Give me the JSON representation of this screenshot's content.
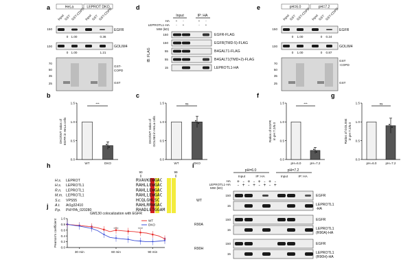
{
  "panel_labels": [
    "a",
    "b",
    "c",
    "d",
    "e",
    "f",
    "g",
    "h",
    "i",
    "j"
  ],
  "panel_a": {
    "groups": [
      "HeLa",
      "LEPROT DKO"
    ],
    "lanes": [
      "Input",
      "GST",
      "GST-COPD",
      "Input",
      "GST",
      "GST-COPD"
    ],
    "mw": [
      "150",
      "100",
      "70",
      "50",
      "35",
      "25"
    ],
    "band_labels": [
      "EGFR",
      "GOLIM4"
    ],
    "egfr_quant": [
      "0",
      "1.00",
      "0.36"
    ],
    "golim4_quant": [
      "0",
      "1.00",
      "1.21"
    ],
    "stain_labels": [
      "GST-\nCOPD",
      "GST"
    ]
  },
  "panel_d": {
    "header": [
      "Input",
      "IP: HA"
    ],
    "rows": [
      "HA",
      "LEPROTL1-HA"
    ],
    "row_signs": [
      "-",
      "+",
      "-",
      "+"
    ],
    "mw_label": "MW (kD)",
    "mw": [
      "150",
      "150",
      "55",
      "55",
      "15"
    ],
    "blot_side": "IB: FLAG",
    "bands": [
      "EGFR-FLAG",
      "EGFR(TMD-5)-FLAG",
      "B4GALT1-FLAG",
      "B4GALT1(TMD+2)-FLAG",
      "LEPROTL1-HA"
    ]
  },
  "panel_e": {
    "groups": [
      "pH=6.0",
      "pH=7.2"
    ],
    "lanes": [
      "Input",
      "GST",
      "GST-COPD",
      "Input",
      "GST",
      "GST-COPD"
    ],
    "mw": [
      "150",
      "100",
      "70",
      "50",
      "35",
      "25"
    ],
    "band_labels": [
      "EGFR",
      "GOLIM4",
      "GST\n-COPD",
      "GST"
    ],
    "egfr_quant": [
      "0",
      "1.00",
      "0",
      "0.24"
    ],
    "golim4_quant": [
      "0",
      "1.00",
      "0",
      "0.87"
    ]
  },
  "panel_h": {
    "positions": [
      "90",
      "99"
    ],
    "species": [
      {
        "org": "H.s.",
        "gene": "LEPROT",
        "seq": "RVAVKEWGAC"
      },
      {
        "org": "H.s.",
        "gene": "LEPROTL1",
        "seq": "RAHLLEWGAC"
      },
      {
        "org": "R.n.",
        "gene": "LEPROTL1",
        "seq": "RAHLLEWGAC"
      },
      {
        "org": "M.m.",
        "gene": "LEPROTL1",
        "seq": "RAHLLEWGAC"
      },
      {
        "org": "S.c.",
        "gene": "VPS55",
        "seq": "HCQLGHLSC"
      },
      {
        "org": "A.t.",
        "gene": "At1g32410",
        "seq": "RAHLRRWGAC"
      },
      {
        "org": "P.p.",
        "gene": "PHYPA_020280",
        "seq": "RHADLETGGAM"
      }
    ]
  },
  "panel_i": {
    "groups": [
      "pH=6.0",
      "pH=7.2"
    ],
    "header": [
      "Input",
      "IP: HA",
      "Input",
      "IP: HA"
    ],
    "rows": [
      "HA",
      "LEPROTL1-HA"
    ],
    "mw_label": "MW (kD)",
    "row_groups": [
      "WT",
      "R90A",
      "R90H"
    ],
    "mw": [
      "150",
      "15",
      "150",
      "15",
      "150",
      "15"
    ],
    "bands": [
      "EGFR",
      "LEPROTL1\n-HA",
      "EGFR",
      "LEPROTL1\n(R90A)-HA",
      "EGFR",
      "LEPROTL1\n(R90H)-HA"
    ]
  },
  "chart_data": [
    {
      "id": "b",
      "type": "bar",
      "categories": [
        "WT",
        "DKO"
      ],
      "values": [
        1.0,
        0.37
      ],
      "errors": [
        0,
        0.1
      ],
      "ylabel": "DKO/WT ratios of\nEGFR in HeLa cells",
      "ylim": [
        0,
        1.5
      ],
      "yticks": [
        "0.0",
        "0.5",
        "1.0",
        "1.5"
      ],
      "sig": "***"
    },
    {
      "id": "c",
      "type": "bar",
      "categories": [
        "WT",
        "DKO"
      ],
      "values": [
        1.0,
        1.0
      ],
      "errors": [
        0,
        0.15
      ],
      "ylabel": "DKO/WT ratios of\nGOLIM4 in HeLa cells",
      "ylim": [
        0,
        1.5
      ],
      "yticks": [
        "0.0",
        "0.5",
        "1.0",
        "1.5"
      ],
      "sig": "ns"
    },
    {
      "id": "f",
      "type": "bar",
      "categories": [
        "pH=6.0",
        "pH=7.2"
      ],
      "values": [
        1.0,
        0.24
      ],
      "errors": [
        0,
        0.08
      ],
      "ylabel": "Ratios of EGFR\nin pH 7.2/6.0",
      "ylim": [
        0,
        1.5
      ],
      "yticks": [
        "0.0",
        "0.5",
        "1.0",
        "1.5"
      ],
      "sig": "***"
    },
    {
      "id": "g",
      "type": "bar",
      "categories": [
        "pH=6.0",
        "pH=7.2"
      ],
      "values": [
        1.0,
        0.9
      ],
      "errors": [
        0,
        0.2
      ],
      "ylabel": "Ratios of GOLIM4\nin pH 7.2/6.0",
      "ylim": [
        0,
        1.5
      ],
      "yticks": [
        "0.0",
        "0.5",
        "1.0",
        "1.5"
      ],
      "sig": "ns"
    },
    {
      "id": "j",
      "type": "line",
      "title": "GM130 colocalization with EGFR",
      "x": [
        20,
        25,
        30,
        35,
        40,
        45,
        50,
        55,
        60,
        65,
        70,
        75,
        80,
        85,
        90,
        95,
        100
      ],
      "xticks": [
        "30 min",
        "60 min",
        "90 min"
      ],
      "xtick_values": [
        30,
        60,
        90
      ],
      "ylabel": "Pearson's coefficient",
      "ylim": [
        0.0,
        1.0
      ],
      "yticks": [
        "0.0",
        "0.2",
        "0.4",
        "0.6",
        "0.8",
        "1.0"
      ],
      "series": [
        {
          "name": "WT",
          "color": "#e8302e",
          "values": [
            0.8,
            0.78,
            0.76,
            0.74,
            0.72,
            0.68,
            0.62,
            0.55,
            0.6,
            0.58,
            0.56,
            0.55,
            0.52,
            0.5,
            0.45,
            0.4,
            0.3
          ]
        },
        {
          "name": "DKO",
          "color": "#3b4fd8",
          "values": [
            0.8,
            0.77,
            0.74,
            0.7,
            0.66,
            0.58,
            0.45,
            0.35,
            0.32,
            0.3,
            0.28,
            0.24,
            0.22,
            0.2,
            0.2,
            0.22,
            0.24
          ]
        }
      ],
      "sig_marks": [
        "****",
        "****"
      ],
      "legend_position": "top-right"
    }
  ]
}
